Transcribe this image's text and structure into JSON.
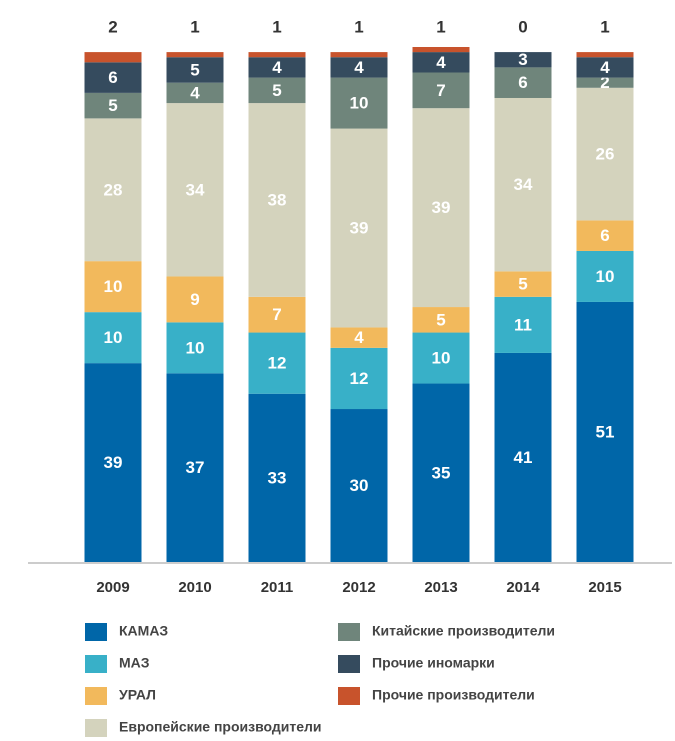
{
  "chart_data": {
    "type": "stacked_bar",
    "categories": [
      "2009",
      "2010",
      "2011",
      "2012",
      "2013",
      "2014",
      "2015"
    ],
    "series": [
      {
        "name": "КАМАЗ",
        "color": "#0066a8",
        "values": [
          39,
          37,
          33,
          30,
          35,
          41,
          51
        ]
      },
      {
        "name": "МАЗ",
        "color": "#38b0c8",
        "values": [
          10,
          10,
          12,
          12,
          10,
          11,
          10
        ]
      },
      {
        "name": "УРАЛ",
        "color": "#f2b95c",
        "values": [
          10,
          9,
          7,
          4,
          5,
          5,
          6
        ]
      },
      {
        "name": "Европейские производители",
        "color": "#d4d3bd",
        "values": [
          28,
          34,
          38,
          39,
          39,
          34,
          26
        ]
      },
      {
        "name": "Китайские производители",
        "color": "#6f857b",
        "values": [
          5,
          4,
          5,
          10,
          7,
          6,
          2
        ]
      },
      {
        "name": "Прочие иномарки",
        "color": "#354b5e",
        "values": [
          6,
          5,
          4,
          4,
          4,
          3,
          4
        ]
      },
      {
        "name": "Прочие производители",
        "color": "#c8532c",
        "values": [
          2,
          1,
          1,
          1,
          1,
          0,
          1
        ]
      }
    ]
  }
}
